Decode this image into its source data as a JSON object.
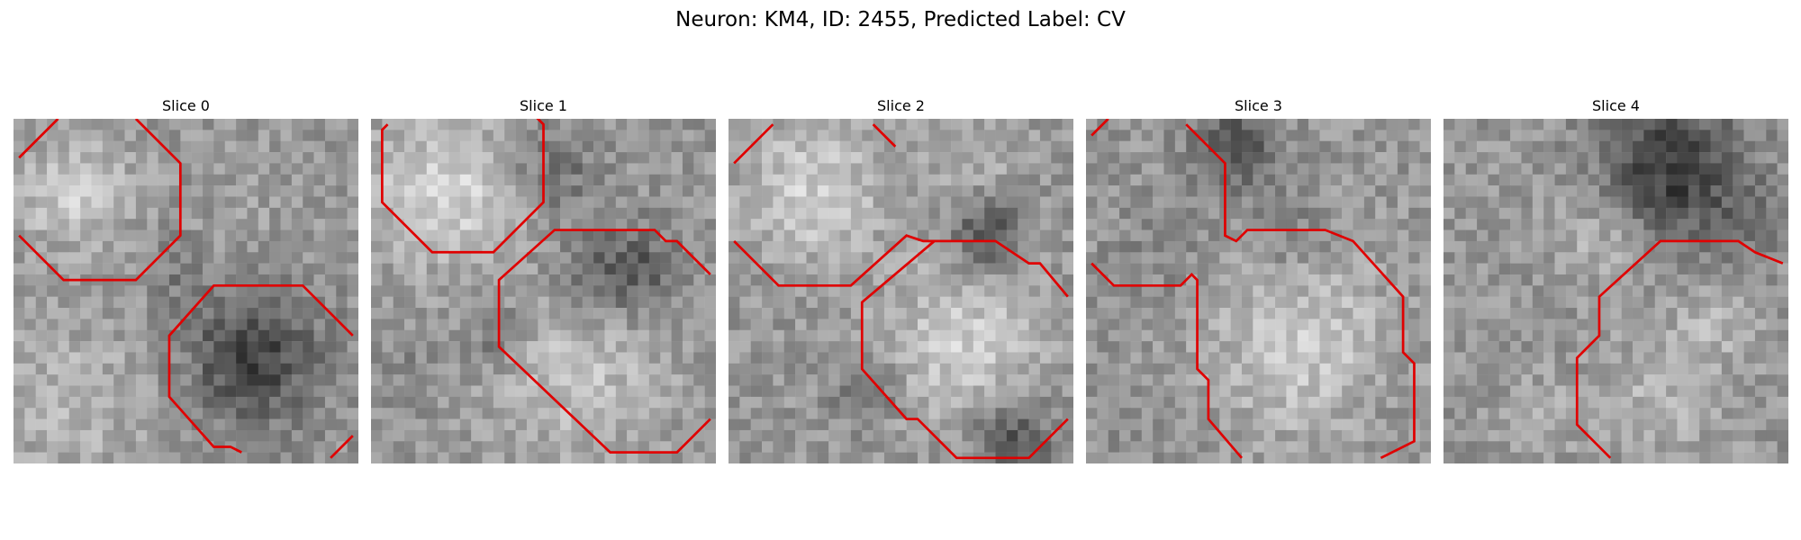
{
  "figure": {
    "title": "Neuron: KM4, ID: 2455, Predicted Label: CV",
    "panels": [
      {
        "title": "Slice 0",
        "contour_color": "#e00000"
      },
      {
        "title": "Slice 1",
        "contour_color": "#e00000"
      },
      {
        "title": "Slice 2",
        "contour_color": "#e00000"
      },
      {
        "title": "Slice 3",
        "contour_color": "#e00000"
      },
      {
        "title": "Slice 4",
        "contour_color": "#e00000"
      }
    ]
  }
}
